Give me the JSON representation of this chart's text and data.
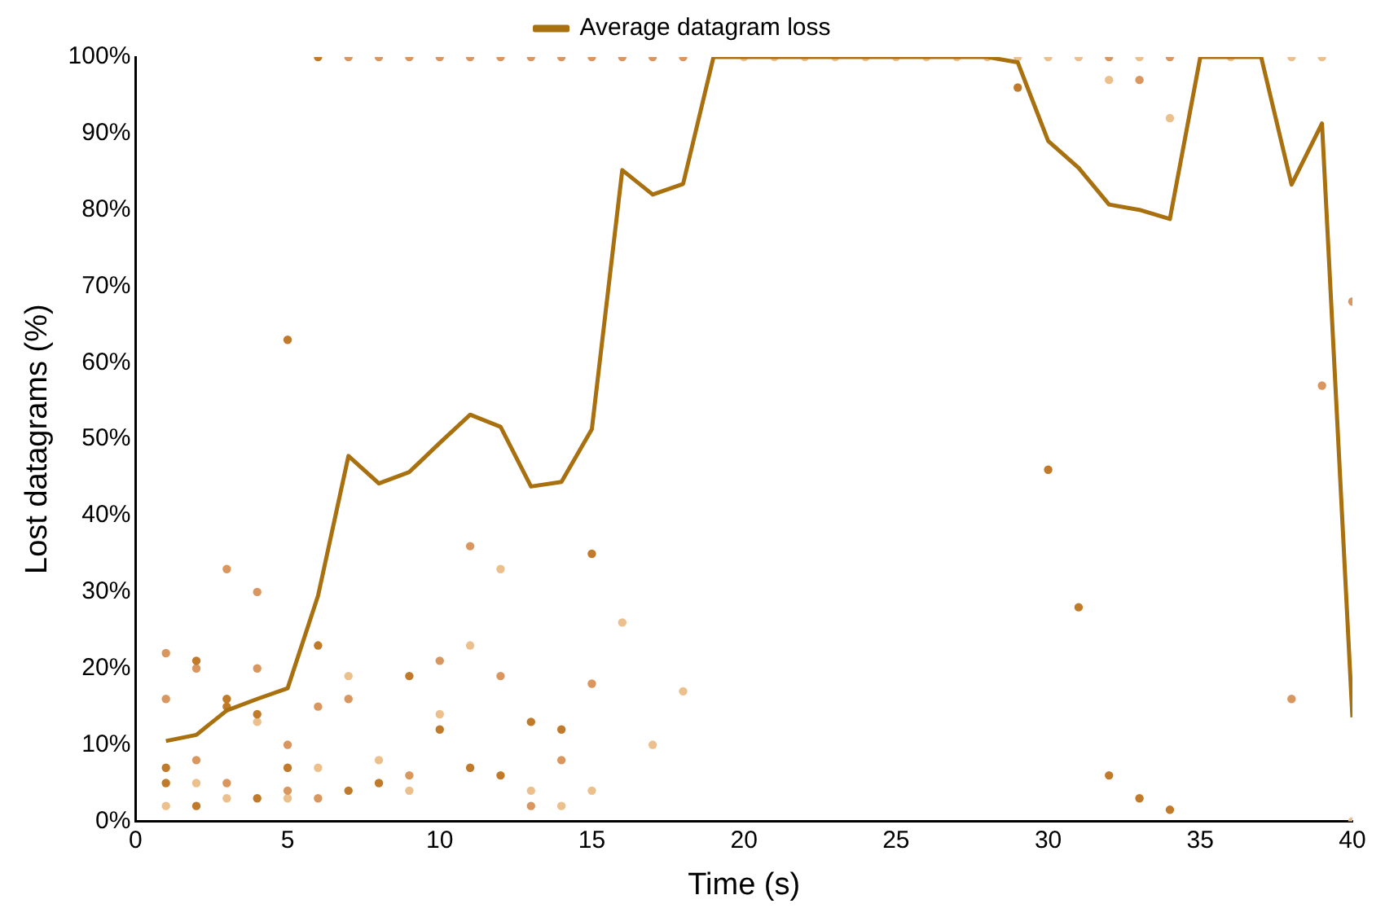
{
  "chart_data": {
    "type": "line",
    "xlabel": "Time (s)",
    "ylabel": "Lost datagrams (%)",
    "xlim": [
      0,
      40
    ],
    "xticks": [
      0,
      5,
      10,
      15,
      20,
      25,
      30,
      35,
      40
    ],
    "ylim": [
      0,
      100
    ],
    "yticks": [
      {
        "value": 0,
        "label": "0%"
      },
      {
        "value": 10,
        "label": "10%"
      },
      {
        "value": 20,
        "label": "20%"
      },
      {
        "value": 30,
        "label": "30%"
      },
      {
        "value": 40,
        "label": "40%"
      },
      {
        "value": 50,
        "label": "50%"
      },
      {
        "value": 60,
        "label": "60%"
      },
      {
        "value": 70,
        "label": "70%"
      },
      {
        "value": 80,
        "label": "80%"
      },
      {
        "value": 90,
        "label": "90%"
      },
      {
        "value": 100,
        "label": "100%"
      }
    ],
    "grid": false,
    "legend": "top",
    "series": [
      {
        "type": "scatter",
        "marker": "circle",
        "color": "#c07a2a",
        "x": [
          1,
          1,
          2,
          2,
          3,
          3,
          4,
          4,
          5,
          5,
          6,
          6,
          7,
          8,
          9,
          10,
          11,
          12,
          13,
          14,
          15,
          29,
          30,
          31,
          32,
          33,
          34
        ],
        "values": [
          7,
          5,
          21,
          2,
          16,
          15,
          14,
          3,
          63,
          7,
          23,
          100,
          4,
          5,
          19,
          12,
          7,
          6,
          13,
          12,
          35,
          96,
          46,
          28,
          6,
          3,
          1.5
        ]
      },
      {
        "type": "scatter",
        "marker": "circle",
        "color": "#d9965e",
        "x": [
          1,
          1,
          2,
          2,
          3,
          3,
          4,
          4,
          5,
          5,
          6,
          6,
          7,
          7,
          8,
          9,
          9,
          10,
          10,
          11,
          11,
          12,
          12,
          13,
          13,
          14,
          14,
          15,
          15,
          16,
          17,
          18,
          32,
          33,
          34,
          38,
          39,
          40
        ],
        "values": [
          22,
          16,
          20,
          8,
          33,
          5,
          30,
          20,
          10,
          4,
          15,
          3,
          16,
          100,
          100,
          6,
          100,
          21,
          100,
          36,
          100,
          19,
          100,
          2,
          100,
          8,
          100,
          18,
          100,
          100,
          100,
          100,
          100,
          97,
          100,
          16,
          57,
          68
        ]
      },
      {
        "type": "scatter",
        "marker": "circle",
        "color": "#ecc08c",
        "x": [
          1,
          2,
          3,
          4,
          5,
          6,
          7,
          8,
          9,
          10,
          11,
          12,
          13,
          14,
          15,
          16,
          17,
          18,
          19,
          20,
          21,
          22,
          23,
          24,
          25,
          26,
          27,
          28,
          29,
          30,
          31,
          32,
          33,
          34,
          35,
          36,
          37,
          38,
          39,
          40
        ],
        "values": [
          2,
          5,
          3,
          13,
          3,
          7,
          19,
          8,
          4,
          14,
          23,
          33,
          4,
          2,
          4,
          26,
          10,
          17,
          null,
          100,
          100,
          100,
          100,
          100,
          100,
          100,
          100,
          100,
          100,
          100,
          100,
          97,
          100,
          92,
          null,
          100,
          null,
          100,
          100,
          0
        ]
      },
      {
        "type": "line",
        "name": "Average datagram loss",
        "color": "#a8700f",
        "marker": "none",
        "line_style": "solid",
        "x": [
          1,
          2,
          3,
          4,
          5,
          6,
          7,
          8,
          9,
          10,
          11,
          12,
          13,
          14,
          15,
          16,
          17,
          18,
          19,
          20,
          21,
          22,
          23,
          24,
          25,
          26,
          27,
          28,
          29,
          30,
          31,
          32,
          33,
          34,
          35,
          36,
          37,
          38,
          39,
          40
        ],
        "values": [
          10.5,
          11.3,
          14.5,
          16,
          17.4,
          29.5,
          47.8,
          44.2,
          45.7,
          49.5,
          53.2,
          51.6,
          43.8,
          44.4,
          51.3,
          85.2,
          82,
          83.4,
          100,
          100,
          100,
          100,
          100,
          100,
          100,
          100,
          100,
          100,
          99.3,
          89,
          85.5,
          80.7,
          80,
          78.8,
          100,
          100,
          100,
          83.3,
          91.3,
          13.6
        ]
      }
    ]
  }
}
